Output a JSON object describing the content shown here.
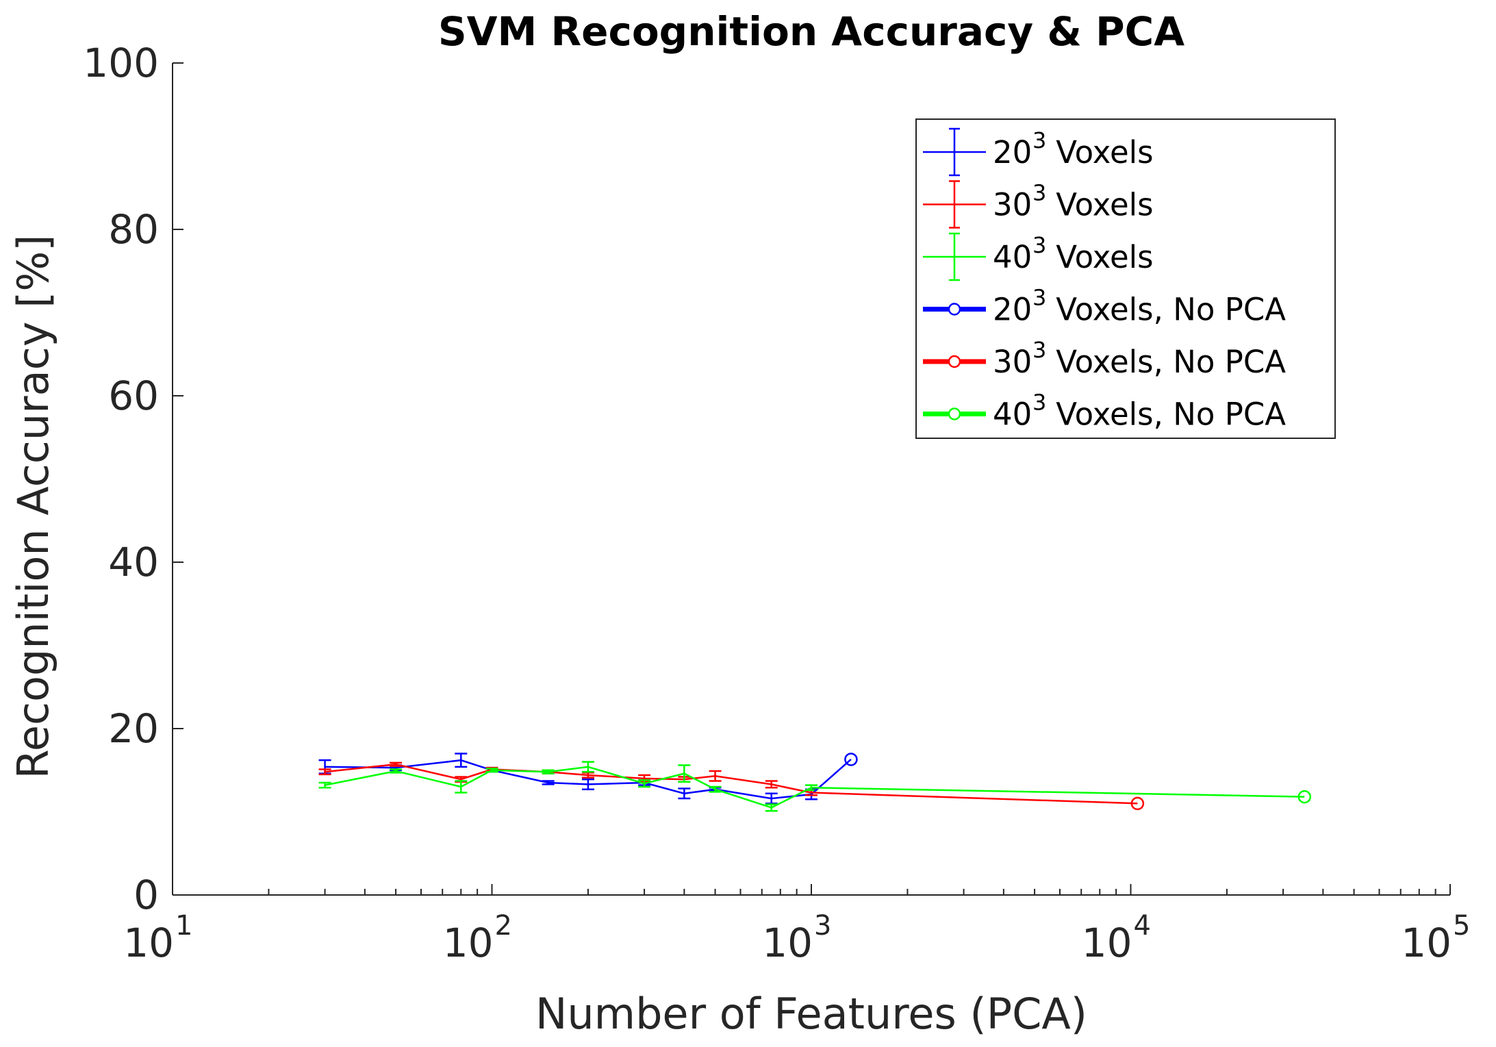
{
  "chart_data": {
    "type": "line",
    "title": "SVM Recognition Accuracy & PCA",
    "xlabel": "Number of Features (PCA)",
    "ylabel": "Recognition Accuracy [%]",
    "xscale": "log",
    "xlim": [
      10,
      100000
    ],
    "ylim": [
      0,
      100
    ],
    "x_ticks": [
      {
        "value": 10,
        "base": "10",
        "exp": "1"
      },
      {
        "value": 100,
        "base": "10",
        "exp": "2"
      },
      {
        "value": 1000,
        "base": "10",
        "exp": "3"
      },
      {
        "value": 10000,
        "base": "10",
        "exp": "4"
      },
      {
        "value": 100000,
        "base": "10",
        "exp": "5"
      }
    ],
    "y_ticks": [
      {
        "value": 0,
        "label": "0"
      },
      {
        "value": 20,
        "label": "20"
      },
      {
        "value": 40,
        "label": "40"
      },
      {
        "value": 60,
        "label": "60"
      },
      {
        "value": 80,
        "label": "80"
      },
      {
        "value": 100,
        "label": "100"
      }
    ],
    "grid": false,
    "legend_position": "top-right",
    "series": [
      {
        "name": "20³ Voxels",
        "label_base": "20",
        "label_exp": "3",
        "label_rest": " Voxels",
        "color": "#0000ff",
        "style": "errorbar",
        "x": [
          30,
          50,
          80,
          100,
          150,
          200,
          300,
          400,
          500,
          750,
          1000
        ],
        "y": [
          15.4,
          15.3,
          16.2,
          15.0,
          13.5,
          13.3,
          13.5,
          12.2,
          12.7,
          11.6,
          12.1
        ],
        "err": [
          0.8,
          0.3,
          0.8,
          0.2,
          0.2,
          0.6,
          0.3,
          0.6,
          0.2,
          0.6,
          0.6
        ]
      },
      {
        "name": "30³ Voxels",
        "label_base": "30",
        "label_exp": "3",
        "label_rest": " Voxels",
        "color": "#ff0000",
        "style": "errorbar",
        "x": [
          30,
          50,
          80,
          100,
          150,
          200,
          300,
          400,
          500,
          750,
          1000
        ],
        "y": [
          14.8,
          15.7,
          13.9,
          15.1,
          14.8,
          14.4,
          14.0,
          13.9,
          14.3,
          13.3,
          12.3
        ],
        "err": [
          0.3,
          0.2,
          0.3,
          0.2,
          0.2,
          0.3,
          0.4,
          0.3,
          0.6,
          0.4,
          0.3
        ]
      },
      {
        "name": "40³ Voxels",
        "label_base": "40",
        "label_exp": "3",
        "label_rest": " Voxels",
        "color": "#00ff00",
        "style": "errorbar",
        "x": [
          30,
          50,
          80,
          100,
          150,
          200,
          300,
          400,
          500,
          750,
          1000
        ],
        "y": [
          13.2,
          14.9,
          13.0,
          15.0,
          14.8,
          15.4,
          13.4,
          14.6,
          12.7,
          10.5,
          12.9
        ],
        "err": [
          0.3,
          0.2,
          0.7,
          0.2,
          0.2,
          0.6,
          0.4,
          1.0,
          0.3,
          0.4,
          0.3
        ]
      },
      {
        "name": "20³ Voxels, No PCA",
        "label_base": "20",
        "label_exp": "3",
        "label_rest": " Voxels, No PCA",
        "color": "#0000ff",
        "style": "marker-line",
        "connect_from": {
          "x": 1000,
          "y": 12.1
        },
        "x": [
          1331
        ],
        "y": [
          16.3
        ]
      },
      {
        "name": "30³ Voxels, No PCA",
        "label_base": "30",
        "label_exp": "3",
        "label_rest": " Voxels, No PCA",
        "color": "#ff0000",
        "style": "marker-line",
        "connect_from": {
          "x": 1000,
          "y": 12.3
        },
        "x": [
          10500
        ],
        "y": [
          11.0
        ]
      },
      {
        "name": "40³ Voxels, No PCA",
        "label_base": "40",
        "label_exp": "3",
        "label_rest": " Voxels, No PCA",
        "color": "#00ff00",
        "style": "marker-line",
        "connect_from": {
          "x": 1000,
          "y": 12.9
        },
        "x": [
          35000
        ],
        "y": [
          11.8
        ]
      }
    ]
  }
}
